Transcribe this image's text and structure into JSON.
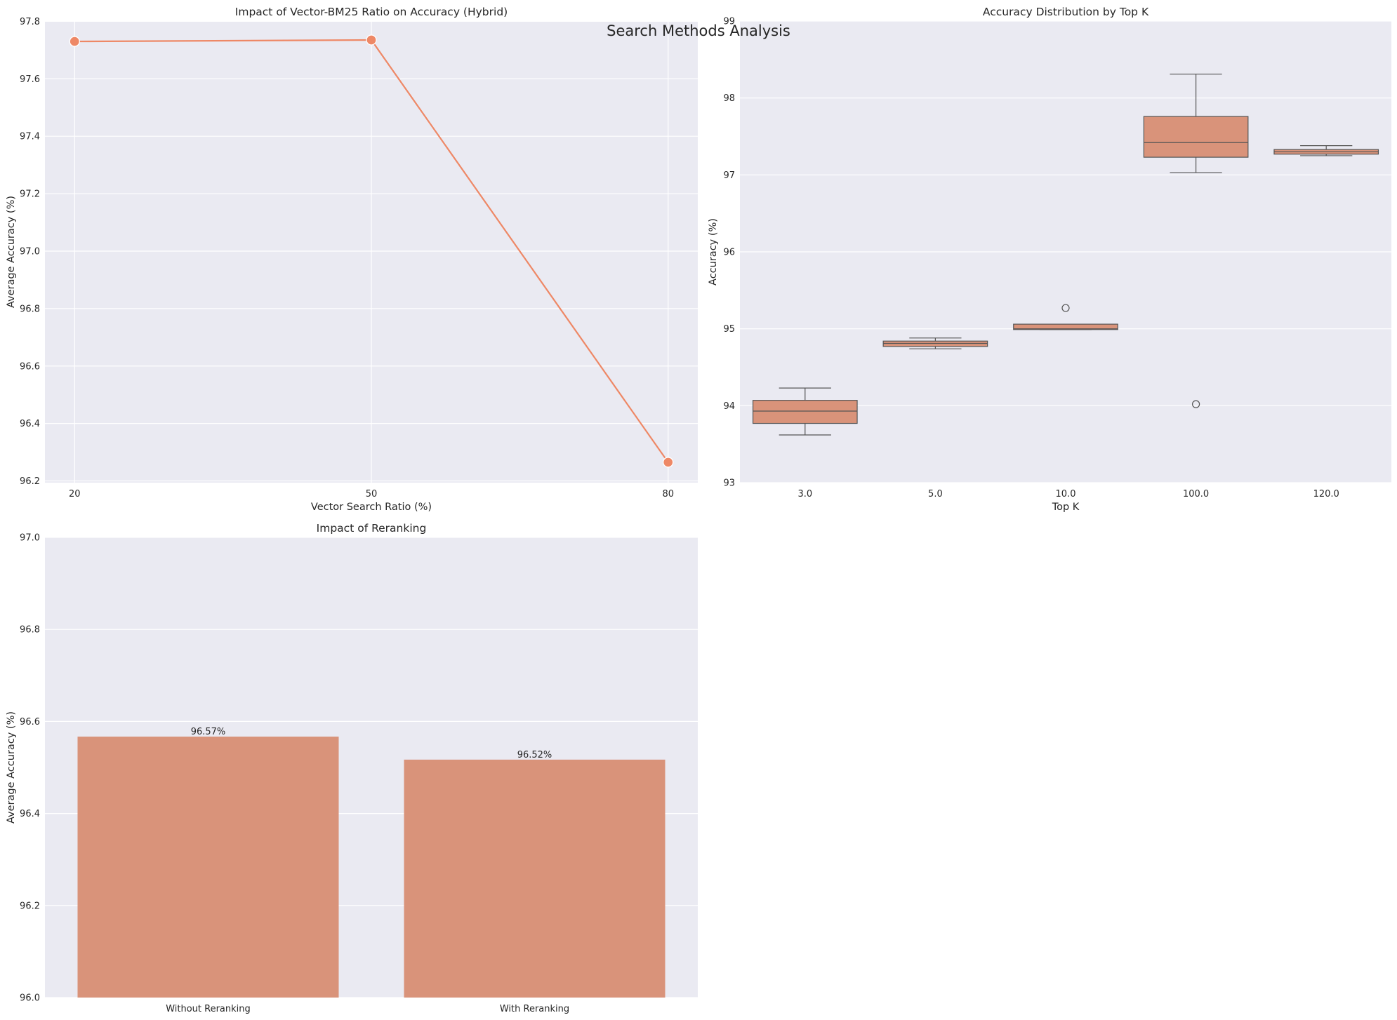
{
  "figure": {
    "suptitle": "Search Methods Analysis"
  },
  "colors": {
    "axes_bg": "#eaeaf2",
    "grid": "#ffffff",
    "line": "#ee8866",
    "marker": "#ee8866",
    "box_fill": "#d9937a",
    "box_edge": "#555555",
    "bar": "#d9937a"
  },
  "chart_data": [
    {
      "type": "line",
      "title": "Impact of Vector-BM25 Ratio on Accuracy (Hybrid)",
      "xlabel": "Vector Search Ratio (%)",
      "ylabel": "Average Accuracy (%)",
      "x": [
        20,
        50,
        80
      ],
      "y": [
        97.73,
        97.735,
        96.265
      ],
      "xticks": [
        20,
        50,
        80
      ],
      "xtick_labels": [
        "20",
        "50",
        "80"
      ],
      "yticks": [
        96.2,
        96.4,
        96.6,
        96.8,
        97.0,
        97.2,
        97.4,
        97.6,
        97.8
      ],
      "ytick_labels": [
        "96.2",
        "96.4",
        "96.6",
        "96.8",
        "97.0",
        "97.2",
        "97.4",
        "97.6",
        "97.8"
      ],
      "xlim": [
        17,
        83
      ],
      "ylim": [
        96.194,
        97.801
      ],
      "grid": true,
      "markers": true
    },
    {
      "type": "box",
      "title": "Accuracy Distribution by Top K",
      "xlabel": "Top K",
      "ylabel": "Accuracy (%)",
      "categories": [
        "3.0",
        "5.0",
        "10.0",
        "100.0",
        "120.0"
      ],
      "boxes": [
        {
          "whisker_low": 93.62,
          "q1": 93.77,
          "median": 93.93,
          "q3": 94.07,
          "whisker_high": 94.23,
          "outliers": []
        },
        {
          "whisker_low": 94.74,
          "q1": 94.77,
          "median": 94.81,
          "q3": 94.84,
          "whisker_high": 94.88,
          "outliers": []
        },
        {
          "whisker_low": 94.99,
          "q1": 94.99,
          "median": 95.0,
          "q3": 95.06,
          "whisker_high": 95.06,
          "outliers": [
            95.27
          ]
        },
        {
          "whisker_low": 97.03,
          "q1": 97.23,
          "median": 97.42,
          "q3": 97.76,
          "whisker_high": 98.31,
          "outliers": [
            94.02
          ]
        },
        {
          "whisker_low": 97.25,
          "q1": 97.27,
          "median": 97.3,
          "q3": 97.33,
          "whisker_high": 97.38,
          "outliers": []
        }
      ],
      "yticks": [
        93,
        94,
        95,
        96,
        97,
        98,
        99
      ],
      "ytick_labels": [
        "93",
        "94",
        "95",
        "96",
        "97",
        "98",
        "99"
      ],
      "ylim": [
        93,
        99
      ],
      "grid": true
    },
    {
      "type": "bar",
      "title": "Impact of Reranking",
      "xlabel": "",
      "ylabel": "Average Accuracy (%)",
      "categories": [
        "Without Reranking",
        "With Reranking"
      ],
      "values": [
        96.567,
        96.517
      ],
      "data_labels": [
        "96.57%",
        "96.52%"
      ],
      "yticks": [
        96.0,
        96.2,
        96.4,
        96.6,
        96.8,
        97.0
      ],
      "ytick_labels": [
        "96.0",
        "96.2",
        "96.4",
        "96.6",
        "96.8",
        "97.0"
      ],
      "ylim": [
        96.0,
        97.0
      ],
      "grid": true
    }
  ]
}
